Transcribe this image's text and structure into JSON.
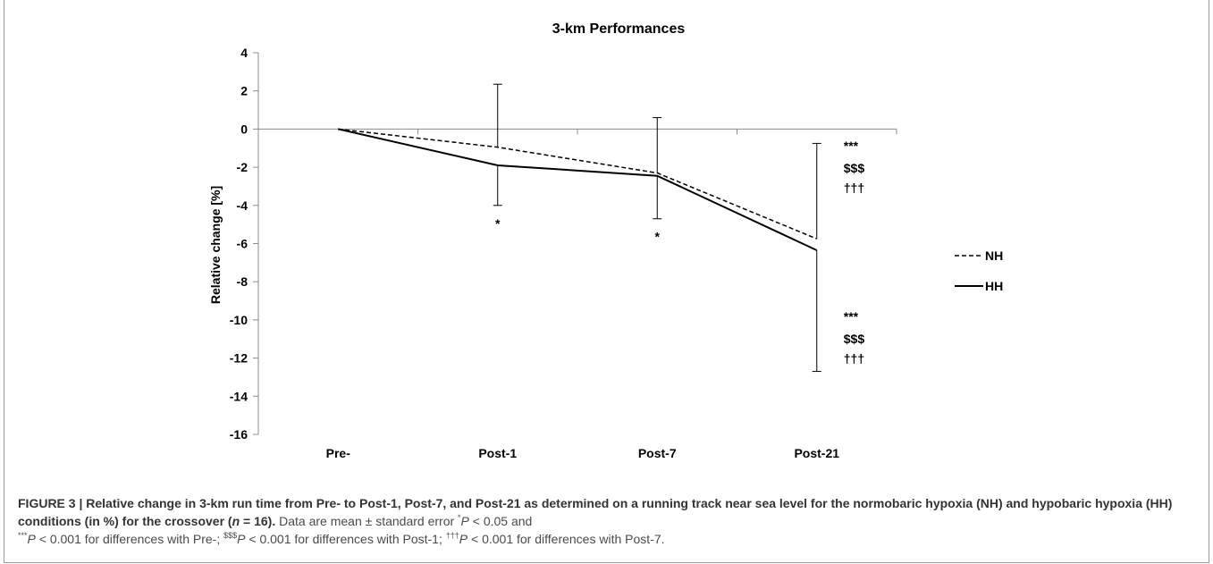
{
  "chart_data": {
    "type": "line",
    "title": "3-km Performances",
    "xlabel": "",
    "ylabel": "Relative change [%]",
    "categories": [
      "Pre-",
      "Post-1",
      "Post-7",
      "Post-21"
    ],
    "ylim": [
      -16,
      4
    ],
    "yticks": [
      4,
      2,
      0,
      -2,
      -4,
      -6,
      -8,
      -10,
      -12,
      -14,
      -16
    ],
    "ytick_labels": [
      "4",
      "2",
      "0",
      "-2",
      "-4",
      "-6",
      "-8",
      "-10",
      "-12",
      "-14",
      "-16"
    ],
    "series": [
      {
        "name": "NH",
        "style": "dashed",
        "values": [
          0,
          -0.95,
          -2.3,
          -5.75
        ],
        "error_plus": [
          null,
          3.3,
          2.9,
          5.0
        ]
      },
      {
        "name": "HH",
        "style": "solid",
        "values": [
          0,
          -1.9,
          -2.45,
          -6.35
        ],
        "error_minus": [
          null,
          2.1,
          2.25,
          6.35
        ]
      }
    ],
    "annotations": [
      {
        "category": "Post-1",
        "position": "below",
        "lines": [
          "*"
        ]
      },
      {
        "category": "Post-7",
        "position": "below",
        "lines": [
          "*"
        ]
      },
      {
        "category": "Post-21",
        "position": "upper-right",
        "lines": [
          "***",
          "$$$",
          "†††"
        ]
      },
      {
        "category": "Post-21",
        "position": "lower-right",
        "lines": [
          "***",
          "$$$",
          "†††"
        ]
      }
    ],
    "legend_position": "right",
    "grid": false
  },
  "caption": {
    "label": "FIGURE 3 | Relative change in 3-km run time from Pre- to Post-1, Post-7, and Post-21 as determined on a running track near sea level for the normobaric hypoxia (NH) and hypobaric hypoxia (HH) conditions (in %) for the crossover (",
    "n_symbol": "n",
    "n_value": " = 16).",
    "text_1": " Data are mean ± standard error ",
    "mark_1": "*",
    "p_1": "P",
    "text_2": " < 0.05 and",
    "mark_2": "***",
    "p_2": "P",
    "text_3": " < 0.001 for differences with Pre-; ",
    "mark_3": "$$$",
    "p_3": "P",
    "text_4": " < 0.001 for differences with Post-1; ",
    "mark_4": "†††",
    "p_4": "P",
    "text_5": " < 0.001 for differences with Post-7."
  }
}
